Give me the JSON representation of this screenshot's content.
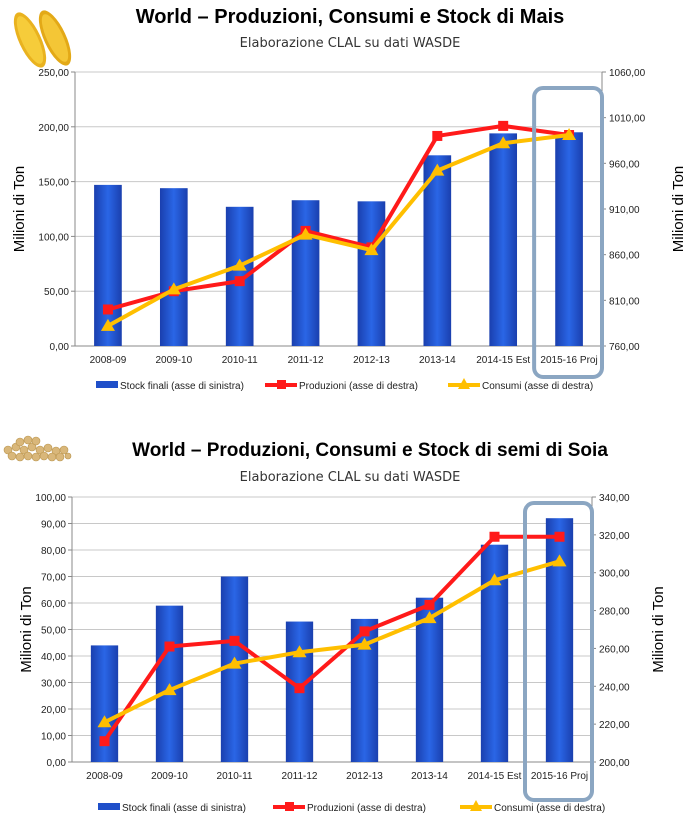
{
  "chart_data": [
    {
      "type": "bar",
      "title": "World – Produzioni, Consumi e Stock di Mais",
      "subtitle": "Elaborazione CLAL su dati WASDE",
      "ylabel_left": "Milioni di Ton",
      "ylabel_right": "Milioni di Ton",
      "categories": [
        "2008-09",
        "2009-10",
        "2010-11",
        "2011-12",
        "2012-13",
        "2013-14",
        "2014-15 Est",
        "2015-16 Proj"
      ],
      "left_ticks": [
        "0,00",
        "50,00",
        "100,00",
        "150,00",
        "200,00",
        "250,00"
      ],
      "right_ticks": [
        "760,00",
        "810,00",
        "860,00",
        "910,00",
        "960,00",
        "1010,00",
        "1060,00"
      ],
      "ylim_left": [
        0,
        250
      ],
      "ylim_right": [
        760,
        1060
      ],
      "highlight": "2015-16 Proj",
      "series": [
        {
          "name": "Stock finali (asse di sinistra)",
          "kind": "bar",
          "axis": "left",
          "color": "#1f4fc9",
          "values": [
            147,
            144,
            127,
            133,
            132,
            174,
            194,
            195
          ]
        },
        {
          "name": "Produzioni (asse di destra)",
          "kind": "line",
          "axis": "right",
          "color": "#ff1a1a",
          "marker": "square",
          "values": [
            800,
            820,
            831,
            886,
            868,
            990,
            1001,
            991
          ]
        },
        {
          "name": "Consumi (asse di destra)",
          "kind": "line",
          "axis": "right",
          "color": "#ffbf00",
          "marker": "triangle",
          "values": [
            782,
            822,
            848,
            882,
            865,
            952,
            982,
            991
          ]
        }
      ]
    },
    {
      "type": "bar",
      "title": "World – Produzioni, Consumi e Stock di semi di Soia",
      "subtitle": "Elaborazione CLAL su dati WASDE",
      "ylabel_left": "Milioni di Ton",
      "ylabel_right": "Milioni di Ton",
      "categories": [
        "2008-09",
        "2009-10",
        "2010-11",
        "2011-12",
        "2012-13",
        "2013-14",
        "2014-15 Est",
        "2015-16 Proj"
      ],
      "left_ticks": [
        "0,00",
        "10,00",
        "20,00",
        "30,00",
        "40,00",
        "50,00",
        "60,00",
        "70,00",
        "80,00",
        "90,00",
        "100,00"
      ],
      "right_ticks": [
        "200,00",
        "220,00",
        "240,00",
        "260,00",
        "280,00",
        "300,00",
        "320,00",
        "340,00"
      ],
      "ylim_left": [
        0,
        100
      ],
      "ylim_right": [
        200,
        340
      ],
      "highlight": "2015-16 Proj",
      "series": [
        {
          "name": "Stock finali (asse di sinistra)",
          "kind": "bar",
          "axis": "left",
          "color": "#1f4fc9",
          "values": [
            44,
            59,
            70,
            53,
            54,
            62,
            82,
            92
          ]
        },
        {
          "name": "Produzioni (asse di destra)",
          "kind": "line",
          "axis": "right",
          "color": "#ff1a1a",
          "marker": "square",
          "values": [
            211,
            261,
            264,
            239,
            269,
            283,
            319,
            319
          ]
        },
        {
          "name": "Consumi (asse di destra)",
          "kind": "line",
          "axis": "right",
          "color": "#ffbf00",
          "marker": "triangle",
          "values": [
            221,
            238,
            252,
            258,
            262,
            276,
            296,
            306
          ]
        }
      ]
    }
  ]
}
